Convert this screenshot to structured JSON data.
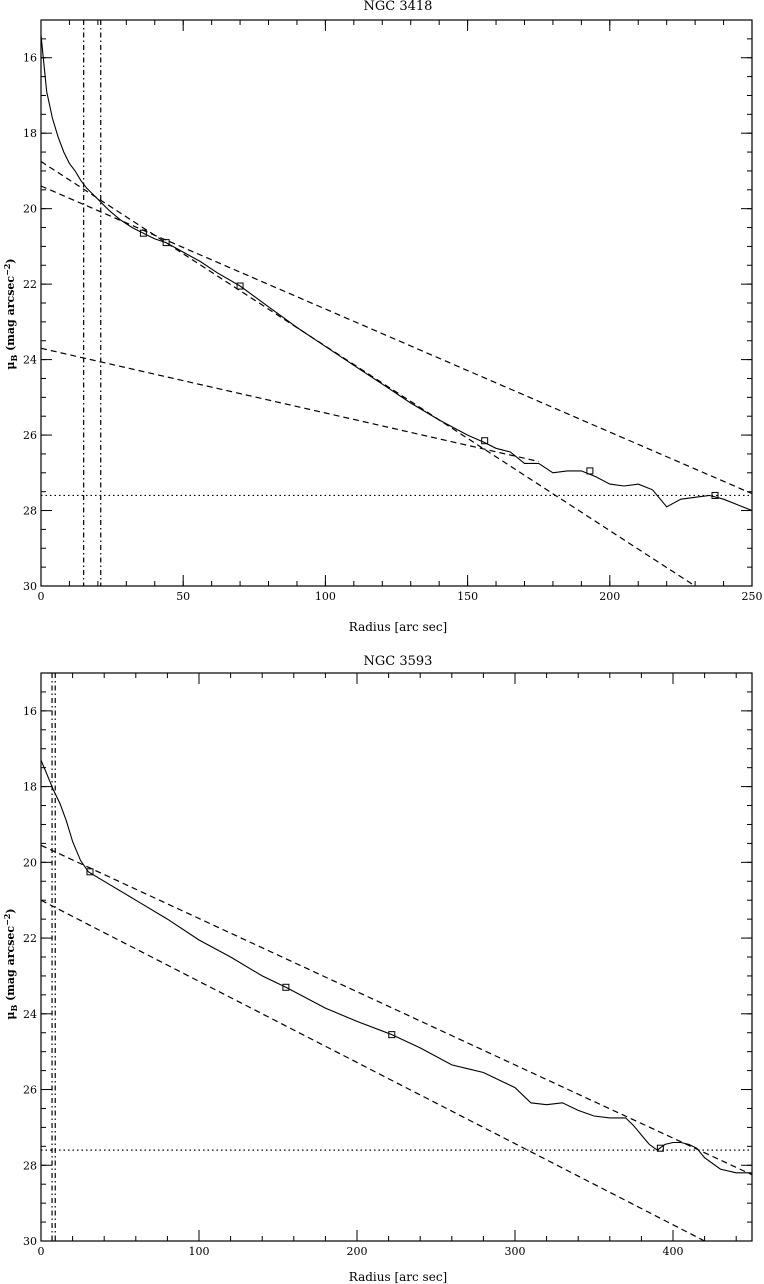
{
  "chart_data": [
    {
      "type": "line",
      "title": "NGC 3418",
      "xlabel": "Radius [arc sec]",
      "ylabel_main": "μ",
      "ylabel_sub": "B",
      "ylabel_rest": " (mag arcsec",
      "ylabel_sup": "−2",
      "ylabel_close": ")",
      "xlim": [
        0,
        250
      ],
      "ylim": [
        30,
        15
      ],
      "x_ticks": [
        0,
        50,
        100,
        150,
        200,
        250
      ],
      "x_tick_labels": [
        "0",
        "50",
        "100",
        "150",
        "200",
        "250"
      ],
      "y_ticks": [
        16,
        18,
        20,
        22,
        24,
        26,
        28,
        30
      ],
      "y_tick_labels": [
        "16",
        "18",
        "20",
        "22",
        "24",
        "26",
        "28",
        "30"
      ],
      "series": [
        {
          "style": "solid",
          "x": [
            0,
            2,
            4,
            6,
            8,
            10,
            12,
            14,
            16,
            18,
            20,
            24,
            28,
            32,
            36,
            40,
            44,
            50,
            56,
            62,
            70,
            80,
            90,
            100,
            110,
            120,
            130,
            140,
            150,
            156,
            160,
            165,
            170,
            175,
            180,
            185,
            190,
            195,
            200,
            205,
            210,
            215,
            220,
            225,
            230,
            235,
            240,
            245,
            250
          ],
          "y": [
            15.4,
            16.9,
            17.6,
            18.1,
            18.5,
            18.8,
            19.0,
            19.25,
            19.45,
            19.6,
            19.75,
            20.05,
            20.3,
            20.5,
            20.65,
            20.8,
            20.9,
            21.15,
            21.4,
            21.7,
            22.05,
            22.6,
            23.15,
            23.65,
            24.15,
            24.65,
            25.15,
            25.6,
            26.0,
            26.2,
            26.35,
            26.45,
            26.75,
            26.75,
            27.0,
            26.95,
            26.95,
            27.1,
            27.3,
            27.35,
            27.3,
            27.45,
            27.9,
            27.7,
            27.65,
            27.6,
            27.7,
            27.85,
            28.0
          ]
        },
        {
          "style": "dashed",
          "x": [
            0,
            250
          ],
          "y": [
            19.4,
            27.55
          ]
        },
        {
          "style": "dashed",
          "x": [
            0,
            230
          ],
          "y": [
            18.75,
            30.0
          ]
        },
        {
          "style": "dashed",
          "x": [
            0,
            175
          ],
          "y": [
            23.7,
            26.7
          ]
        }
      ],
      "fit_points": {
        "x": [
          36,
          44,
          70,
          156,
          193,
          237
        ],
        "y": [
          20.65,
          20.9,
          22.05,
          26.15,
          26.95,
          27.6
        ]
      },
      "hlines": [
        {
          "y": 27.6,
          "style": "dotted"
        }
      ],
      "vlines": [
        {
          "x": 15,
          "style": "dashdot"
        },
        {
          "x": 21,
          "style": "dashdot"
        }
      ],
      "grid": false
    },
    {
      "type": "line",
      "title": "NGC 3593",
      "xlabel": "Radius [arc sec]",
      "ylabel_main": "μ",
      "ylabel_sub": "B",
      "ylabel_rest": " (mag arcsec",
      "ylabel_sup": "−2",
      "ylabel_close": ")",
      "xlim": [
        0,
        450
      ],
      "ylim": [
        30,
        15
      ],
      "x_ticks": [
        0,
        100,
        200,
        300,
        400
      ],
      "x_tick_labels": [
        "0",
        "100",
        "200",
        "300",
        "400"
      ],
      "y_ticks": [
        16,
        18,
        20,
        22,
        24,
        26,
        28,
        30
      ],
      "y_tick_labels": [
        "16",
        "18",
        "20",
        "22",
        "24",
        "26",
        "28",
        "30"
      ],
      "series": [
        {
          "style": "solid",
          "x": [
            0,
            4,
            8,
            12,
            16,
            20,
            25,
            30,
            40,
            60,
            80,
            100,
            120,
            140,
            155,
            180,
            200,
            222,
            240,
            260,
            270,
            280,
            300,
            310,
            320,
            330,
            340,
            350,
            360,
            370,
            375,
            380,
            385,
            390,
            395,
            400,
            405,
            410,
            415,
            420,
            430,
            440,
            450
          ],
          "y": [
            17.3,
            17.7,
            18.1,
            18.45,
            18.9,
            19.45,
            19.95,
            20.25,
            20.5,
            21.0,
            21.5,
            22.05,
            22.5,
            23.0,
            23.3,
            23.85,
            24.2,
            24.55,
            24.9,
            25.35,
            25.45,
            25.55,
            25.95,
            26.35,
            26.4,
            26.35,
            26.55,
            26.7,
            26.75,
            26.75,
            26.95,
            27.2,
            27.45,
            27.6,
            27.45,
            27.4,
            27.4,
            27.45,
            27.55,
            27.8,
            28.1,
            28.2,
            28.2
          ]
        },
        {
          "style": "dashed",
          "x": [
            0,
            450
          ],
          "y": [
            19.55,
            28.25
          ]
        },
        {
          "style": "dashed",
          "x": [
            0,
            420
          ],
          "y": [
            21.0,
            30.0
          ]
        }
      ],
      "fit_points": {
        "x": [
          31,
          155,
          222,
          392
        ],
        "y": [
          20.25,
          23.3,
          24.55,
          27.55
        ]
      },
      "hlines": [
        {
          "y": 27.6,
          "style": "dotted"
        }
      ],
      "vlines": [
        {
          "x": 7,
          "style": "dashdot"
        },
        {
          "x": 9,
          "style": "dashdot"
        }
      ],
      "grid": false
    }
  ]
}
